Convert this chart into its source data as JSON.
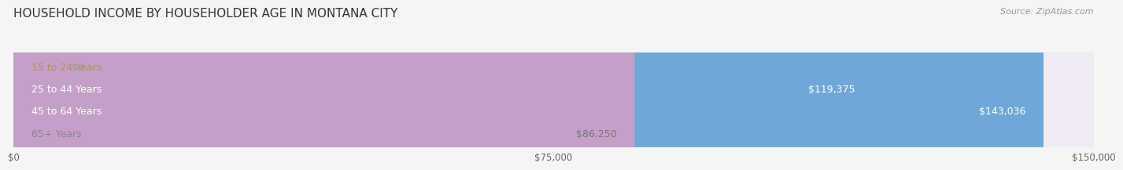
{
  "title": "HOUSEHOLD INCOME BY HOUSEHOLDER AGE IN MONTANA CITY",
  "source": "Source: ZipAtlas.com",
  "categories": [
    "15 to 24 Years",
    "25 to 44 Years",
    "45 to 64 Years",
    "65+ Years"
  ],
  "values": [
    0,
    119375,
    143036,
    86250
  ],
  "bar_colors": [
    "#e8c98a",
    "#e07b6e",
    "#6fa8d6",
    "#c4a0c8"
  ],
  "bar_bg_colors": [
    "#f0ece0",
    "#f5e8e6",
    "#e8f0f8",
    "#f0eaf5"
  ],
  "label_colors": [
    "#b89050",
    "#ffffff",
    "#ffffff",
    "#888888"
  ],
  "value_label_colors": [
    "#999999",
    "#ffffff",
    "#ffffff",
    "#777777"
  ],
  "xlim": [
    0,
    150000
  ],
  "xticks": [
    0,
    75000,
    150000
  ],
  "xtick_labels": [
    "$0",
    "$75,000",
    "$150,000"
  ],
  "background_color": "#f5f5f5",
  "bar_height": 0.6,
  "title_fontsize": 11,
  "label_fontsize": 9,
  "value_fontsize": 9
}
